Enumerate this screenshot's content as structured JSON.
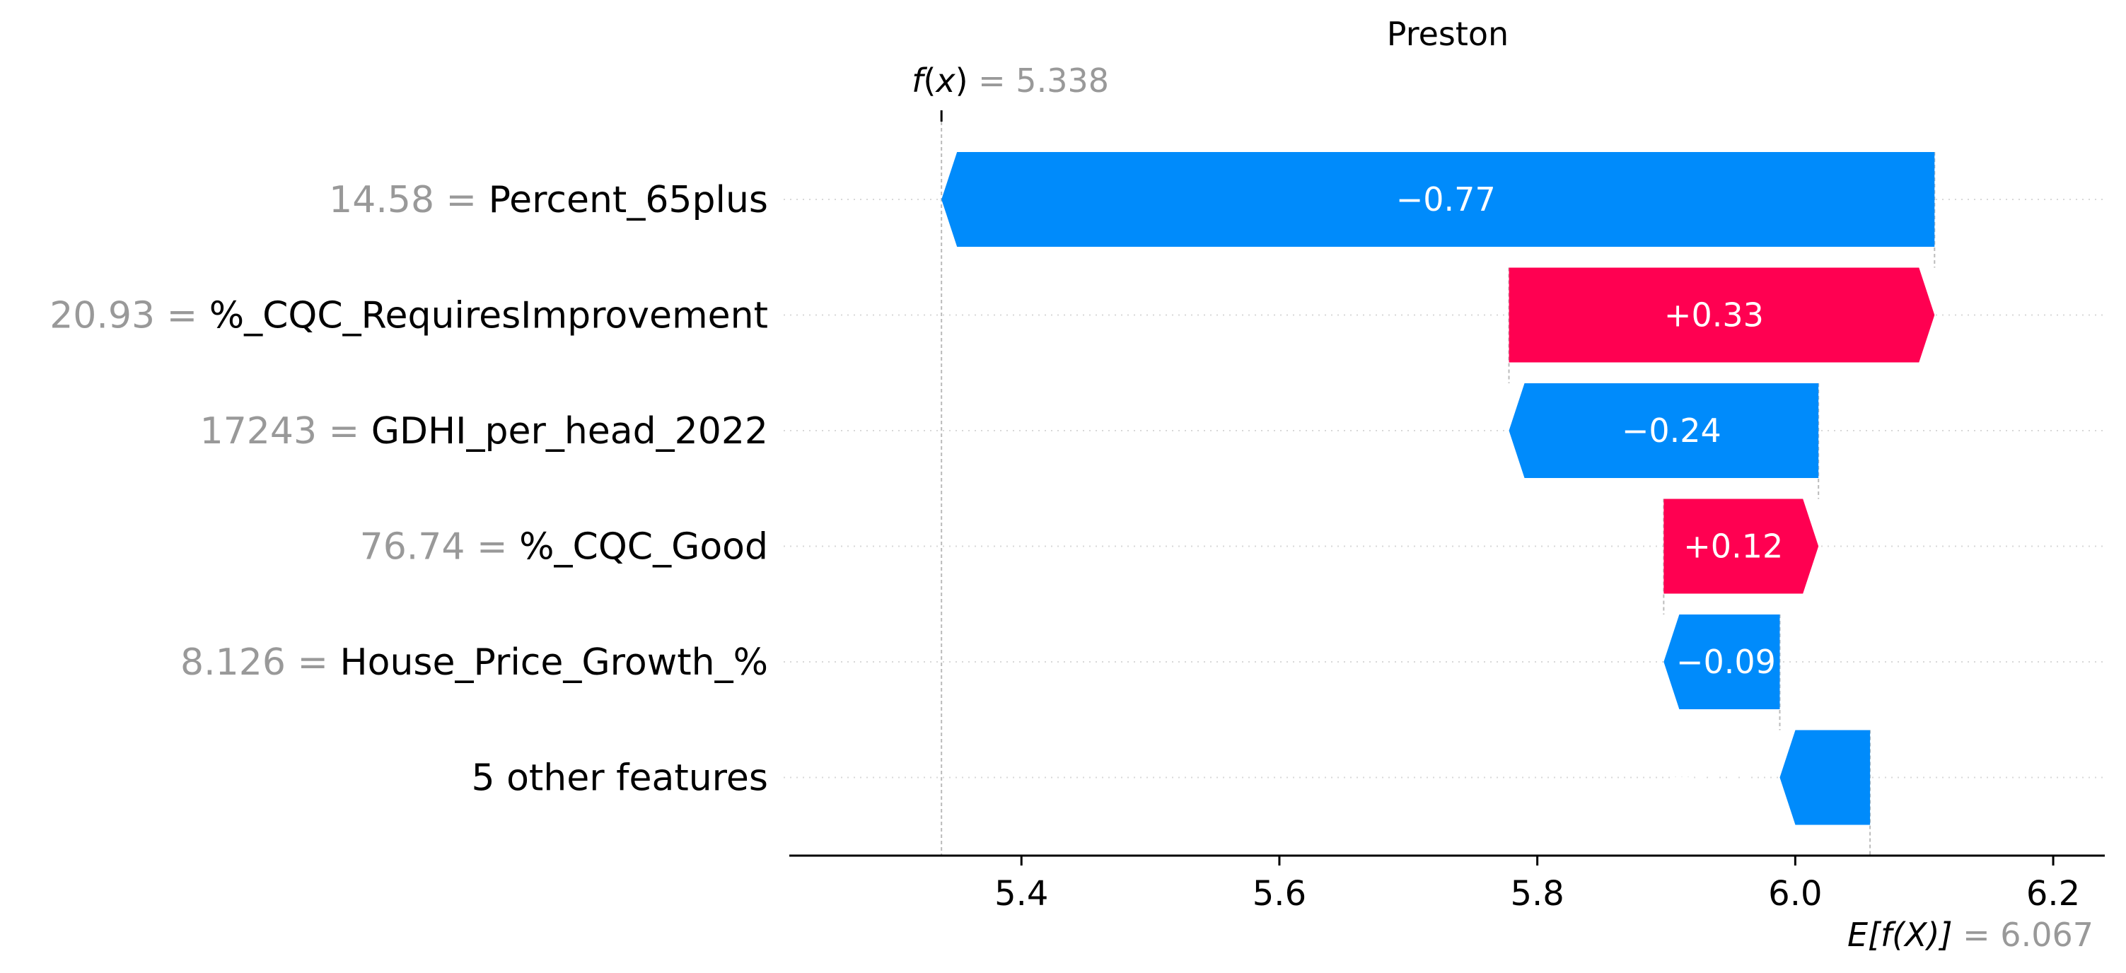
{
  "chart_data": {
    "type": "waterfall",
    "title": "Preston",
    "fx_symbol": "f",
    "fx_arg": "x",
    "fx_value": "5.338",
    "ex_label": "E[f(X)]",
    "ex_value": "6.067",
    "base_value": 6.067,
    "output_value": 5.338,
    "xlim": [
      5.22,
      6.24
    ],
    "xticks": [
      5.4,
      5.6,
      5.8,
      6.0,
      6.2
    ],
    "xtick_labels": [
      "5.4",
      "5.6",
      "5.8",
      "6.0",
      "6.2"
    ],
    "features": [
      {
        "value": "14.58",
        "name": "Percent_65plus",
        "contribution": -0.77,
        "label": "−0.77"
      },
      {
        "value": "20.93",
        "name": "%_CQC_RequiresImprovement",
        "contribution": 0.33,
        "label": "+0.33"
      },
      {
        "value": "17243",
        "name": "GDHI_per_head_2022",
        "contribution": -0.24,
        "label": "−0.24"
      },
      {
        "value": "76.74",
        "name": "%_CQC_Good",
        "contribution": 0.12,
        "label": "+0.12"
      },
      {
        "value": "8.126",
        "name": "House_Price_Growth_%",
        "contribution": -0.09,
        "label": "−0.09"
      },
      {
        "value": "",
        "name": "5 other features",
        "contribution": -0.07,
        "label": "−0.07"
      }
    ],
    "colors": {
      "negative": "#008bfb",
      "positive": "#ff0051"
    }
  }
}
